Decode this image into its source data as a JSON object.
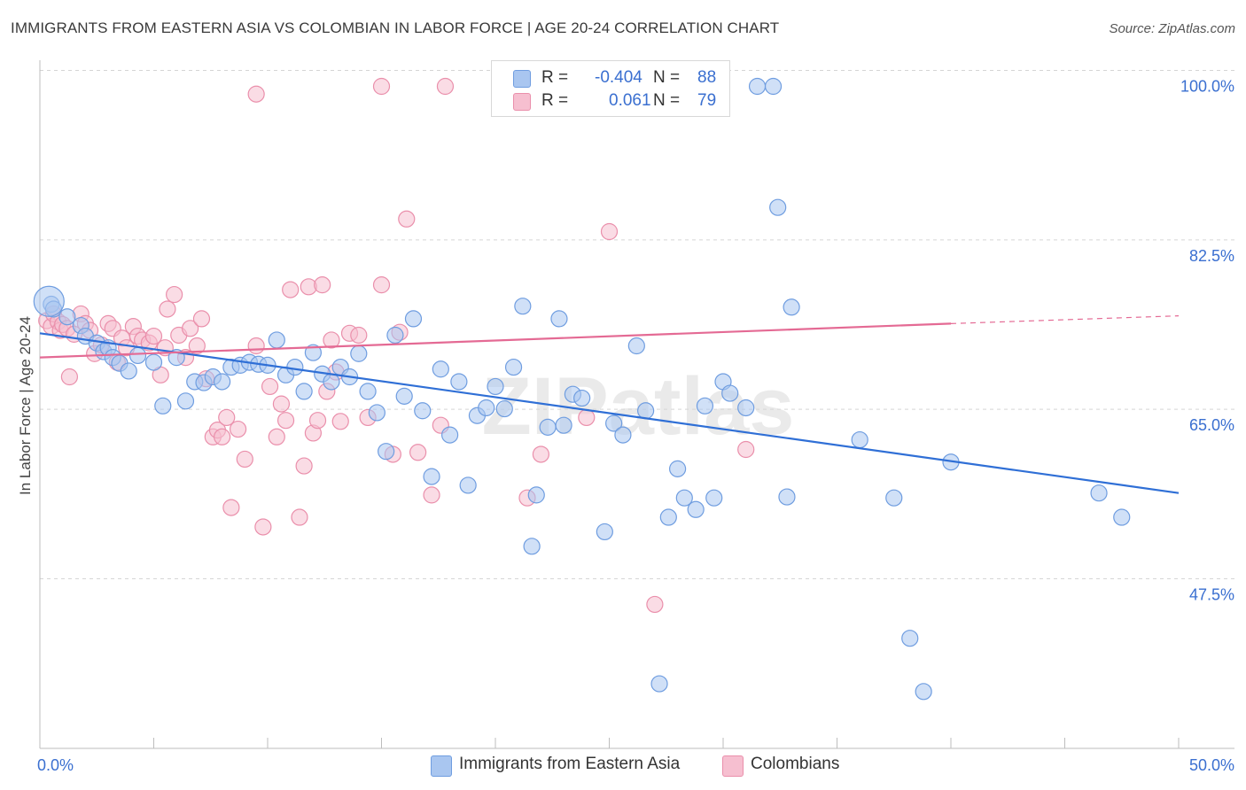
{
  "title": "IMMIGRANTS FROM EASTERN ASIA VS COLOMBIAN IN LABOR FORCE | AGE 20-24 CORRELATION CHART",
  "source": "Source: ZipAtlas.com",
  "watermark": "ZIPatlas",
  "colors": {
    "blue_fill": "#a9c6f0",
    "blue_stroke": "#6f9de0",
    "blue_line": "#2f6fd6",
    "pink_fill": "#f6bfd0",
    "pink_stroke": "#ea8fab",
    "pink_line": "#e46a94",
    "tick_label": "#3a6fd0",
    "grid": "#d5d5d5"
  },
  "legend": {
    "rows": [
      {
        "r_label": "R =",
        "r_value": "-0.404",
        "n_label": "N =",
        "n_value": "88",
        "color": "#a9c6f0",
        "border": "#6f9de0"
      },
      {
        "r_label": "R =",
        "r_value": "0.061",
        "n_label": "N =",
        "n_value": "79",
        "color": "#f6bfd0",
        "border": "#ea8fab"
      }
    ]
  },
  "bottom_legend": [
    {
      "label": "Immigrants from Eastern Asia",
      "color": "#a9c6f0",
      "border": "#6f9de0"
    },
    {
      "label": "Colombians",
      "color": "#f6bfd0",
      "border": "#ea8fab"
    }
  ],
  "chart_data": {
    "type": "scatter",
    "title": "IMMIGRANTS FROM EASTERN ASIA VS COLOMBIAN IN LABOR FORCE | AGE 20-24 CORRELATION CHART",
    "xlabel": "",
    "ylabel": "In Labor Force | Age 20-24",
    "xlim": [
      0,
      50
    ],
    "ylim": [
      33,
      102
    ],
    "x_tick_labels": [
      "0.0%",
      "50.0%"
    ],
    "y_ticks": [
      47.5,
      65.0,
      82.5,
      100.0
    ],
    "y_tick_labels": [
      "47.5%",
      "65.0%",
      "82.5%",
      "100.0%"
    ],
    "grid": "horizontal dashed",
    "series": [
      {
        "name": "Immigrants from Eastern Asia",
        "R": -0.404,
        "N": 88,
        "trend": {
          "x": [
            0,
            50
          ],
          "y": [
            74.5,
            58.0
          ]
        },
        "points": [
          [
            0.5,
            77.5
          ],
          [
            0.6,
            77.0
          ],
          [
            1.2,
            76.2
          ],
          [
            1.8,
            75.3
          ],
          [
            2.0,
            74.2
          ],
          [
            2.5,
            73.5
          ],
          [
            2.8,
            72.6
          ],
          [
            3.0,
            73.0
          ],
          [
            3.2,
            72.0
          ],
          [
            3.5,
            71.4
          ],
          [
            3.9,
            70.6
          ],
          [
            4.3,
            72.2
          ],
          [
            5.0,
            71.5
          ],
          [
            5.4,
            67.0
          ],
          [
            6.0,
            72.0
          ],
          [
            6.4,
            67.5
          ],
          [
            6.8,
            69.5
          ],
          [
            7.2,
            69.4
          ],
          [
            7.6,
            70.0
          ],
          [
            8.0,
            69.5
          ],
          [
            8.4,
            71.0
          ],
          [
            8.8,
            71.2
          ],
          [
            9.2,
            71.5
          ],
          [
            9.6,
            71.3
          ],
          [
            10.0,
            71.2
          ],
          [
            10.4,
            73.8
          ],
          [
            10.8,
            70.2
          ],
          [
            11.2,
            71.0
          ],
          [
            11.6,
            68.5
          ],
          [
            12.0,
            72.5
          ],
          [
            12.4,
            70.3
          ],
          [
            12.8,
            69.5
          ],
          [
            13.2,
            71.0
          ],
          [
            13.6,
            70.0
          ],
          [
            14.0,
            72.4
          ],
          [
            14.4,
            68.5
          ],
          [
            14.8,
            66.3
          ],
          [
            15.2,
            62.3
          ],
          [
            15.6,
            74.3
          ],
          [
            16.0,
            68.0
          ],
          [
            16.4,
            76.0
          ],
          [
            16.8,
            66.5
          ],
          [
            17.2,
            59.7
          ],
          [
            17.6,
            70.8
          ],
          [
            18.0,
            64.0
          ],
          [
            18.4,
            69.5
          ],
          [
            18.8,
            58.8
          ],
          [
            19.2,
            66.0
          ],
          [
            19.6,
            66.8
          ],
          [
            20.0,
            69.0
          ],
          [
            20.4,
            66.7
          ],
          [
            20.8,
            71.0
          ],
          [
            21.2,
            77.3
          ],
          [
            21.6,
            52.5
          ],
          [
            21.8,
            57.8
          ],
          [
            22.3,
            64.8
          ],
          [
            22.8,
            76.0
          ],
          [
            23.0,
            65.0
          ],
          [
            23.4,
            68.2
          ],
          [
            23.8,
            67.8
          ],
          [
            24.8,
            54.0
          ],
          [
            25.2,
            65.2
          ],
          [
            25.6,
            64.0
          ],
          [
            26.2,
            73.2
          ],
          [
            26.6,
            66.5
          ],
          [
            27.2,
            38.3
          ],
          [
            27.6,
            55.5
          ],
          [
            28.0,
            60.5
          ],
          [
            28.3,
            57.5
          ],
          [
            28.8,
            56.3
          ],
          [
            29.2,
            67.0
          ],
          [
            29.6,
            57.5
          ],
          [
            30.0,
            69.5
          ],
          [
            30.3,
            68.3
          ],
          [
            31.0,
            66.8
          ],
          [
            31.5,
            100.0
          ],
          [
            32.2,
            100.0
          ],
          [
            32.4,
            87.5
          ],
          [
            32.8,
            57.6
          ],
          [
            33.0,
            77.2
          ],
          [
            36.0,
            63.5
          ],
          [
            37.5,
            57.5
          ],
          [
            38.2,
            43.0
          ],
          [
            38.8,
            37.5
          ],
          [
            40.0,
            61.2
          ],
          [
            46.5,
            58.0
          ],
          [
            47.5,
            55.5
          ],
          [
            0.4,
            77.8
          ]
        ]
      },
      {
        "name": "Colombians",
        "R": 0.061,
        "N": 79,
        "trend": {
          "x": [
            0,
            40
          ],
          "y": [
            72.0,
            75.5
          ],
          "dashed_to": [
            50,
            76.3
          ]
        },
        "points": [
          [
            0.3,
            75.8
          ],
          [
            0.5,
            75.2
          ],
          [
            0.6,
            76.5
          ],
          [
            0.8,
            75.7
          ],
          [
            0.9,
            74.8
          ],
          [
            1.0,
            75.4
          ],
          [
            1.2,
            75.0
          ],
          [
            1.3,
            70.0
          ],
          [
            1.5,
            74.4
          ],
          [
            1.8,
            76.5
          ],
          [
            2.0,
            75.5
          ],
          [
            2.2,
            74.8
          ],
          [
            2.4,
            72.4
          ],
          [
            2.7,
            73.3
          ],
          [
            3.0,
            75.5
          ],
          [
            3.2,
            75.0
          ],
          [
            3.4,
            71.5
          ],
          [
            3.6,
            74.0
          ],
          [
            3.8,
            73.0
          ],
          [
            4.1,
            75.2
          ],
          [
            4.3,
            74.2
          ],
          [
            4.5,
            73.8
          ],
          [
            4.8,
            73.5
          ],
          [
            5.0,
            74.2
          ],
          [
            5.3,
            70.2
          ],
          [
            5.5,
            73.0
          ],
          [
            5.6,
            77.0
          ],
          [
            5.9,
            78.5
          ],
          [
            6.1,
            74.3
          ],
          [
            6.4,
            72.0
          ],
          [
            6.6,
            75.0
          ],
          [
            6.9,
            73.2
          ],
          [
            7.1,
            76.0
          ],
          [
            7.3,
            69.8
          ],
          [
            7.6,
            63.8
          ],
          [
            7.8,
            64.5
          ],
          [
            8.0,
            63.8
          ],
          [
            8.2,
            65.8
          ],
          [
            8.4,
            56.5
          ],
          [
            8.7,
            64.6
          ],
          [
            9.0,
            61.5
          ],
          [
            9.5,
            73.2
          ],
          [
            9.8,
            54.5
          ],
          [
            10.1,
            69.0
          ],
          [
            10.4,
            63.8
          ],
          [
            10.6,
            67.2
          ],
          [
            10.8,
            65.5
          ],
          [
            11.0,
            79.0
          ],
          [
            11.4,
            55.5
          ],
          [
            11.6,
            60.8
          ],
          [
            11.8,
            79.3
          ],
          [
            12.0,
            64.2
          ],
          [
            12.2,
            65.5
          ],
          [
            12.4,
            79.5
          ],
          [
            12.6,
            68.5
          ],
          [
            12.8,
            73.8
          ],
          [
            13.0,
            70.5
          ],
          [
            13.2,
            65.4
          ],
          [
            13.6,
            74.5
          ],
          [
            14.0,
            74.3
          ],
          [
            14.4,
            65.8
          ],
          [
            15.0,
            79.5
          ],
          [
            15.5,
            62.0
          ],
          [
            15.8,
            74.6
          ],
          [
            16.1,
            86.3
          ],
          [
            16.6,
            62.2
          ],
          [
            17.2,
            57.8
          ],
          [
            17.6,
            65.0
          ],
          [
            21.4,
            57.5
          ],
          [
            22.0,
            62.0
          ],
          [
            24.0,
            65.8
          ],
          [
            25.0,
            85.0
          ],
          [
            27.0,
            46.5
          ],
          [
            28.0,
            100.0
          ],
          [
            29.5,
            100.0
          ],
          [
            31.0,
            62.5
          ],
          [
            9.5,
            99.2
          ],
          [
            15.0,
            100.0
          ],
          [
            17.8,
            100.0
          ]
        ]
      }
    ]
  }
}
